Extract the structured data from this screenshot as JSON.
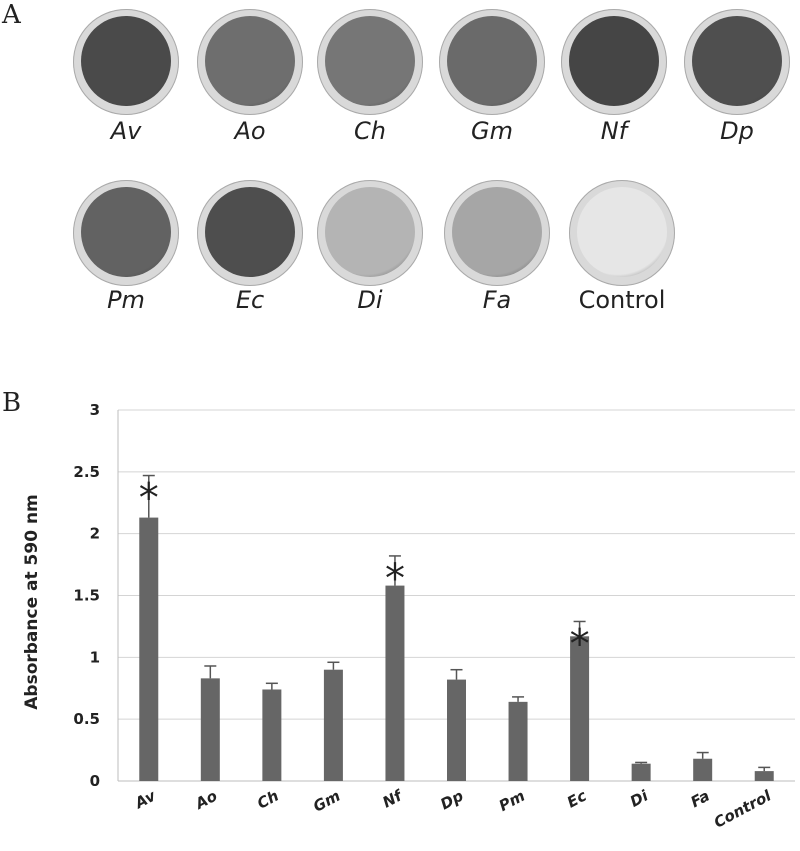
{
  "panel_a": {
    "letter": "A",
    "dishes": [
      {
        "label": "Av",
        "italic": true,
        "fill": "#4a4a4a"
      },
      {
        "label": "Ao",
        "italic": true,
        "fill": "#6e6e6e"
      },
      {
        "label": "Ch",
        "italic": true,
        "fill": "#767676"
      },
      {
        "label": "Gm",
        "italic": true,
        "fill": "#6a6a6a"
      },
      {
        "label": "Nf",
        "italic": true,
        "fill": "#454545"
      },
      {
        "label": "Dp",
        "italic": true,
        "fill": "#4f4f4f"
      },
      {
        "label": "Pm",
        "italic": true,
        "fill": "#626262"
      },
      {
        "label": "Ec",
        "italic": true,
        "fill": "#4e4e4e"
      },
      {
        "label": "Di",
        "italic": true,
        "fill": "#b4b4b4"
      },
      {
        "label": "Fa",
        "italic": true,
        "fill": "#a6a6a6"
      },
      {
        "label": "Control",
        "italic": false,
        "fill": "#e6e6e6"
      }
    ]
  },
  "panel_b": {
    "letter": "B"
  },
  "chart_data": {
    "type": "bar",
    "title": "",
    "xlabel": "",
    "ylabel": "Absorbance at 590 nm",
    "ylim": [
      0,
      3
    ],
    "yticks": [
      "0",
      "0.5",
      "1",
      "1.5",
      "2",
      "2.5",
      "3"
    ],
    "ytick_values": [
      0,
      0.5,
      1,
      1.5,
      2,
      2.5,
      3
    ],
    "grid": true,
    "categories": [
      "Av",
      "Ao",
      "Ch",
      "Gm",
      "Nf",
      "Dp",
      "Pm",
      "Ec",
      "Di",
      "Fa",
      "Control"
    ],
    "values": [
      2.13,
      0.83,
      0.74,
      0.9,
      1.58,
      0.82,
      0.64,
      1.17,
      0.14,
      0.18,
      0.08
    ],
    "errors": [
      0.34,
      0.1,
      0.05,
      0.06,
      0.24,
      0.08,
      0.04,
      0.12,
      0.01,
      0.05,
      0.03
    ],
    "significance": [
      "*",
      "",
      "",
      "",
      "*",
      "",
      "",
      "*",
      "",
      "",
      ""
    ],
    "bar_color": "#666666"
  }
}
